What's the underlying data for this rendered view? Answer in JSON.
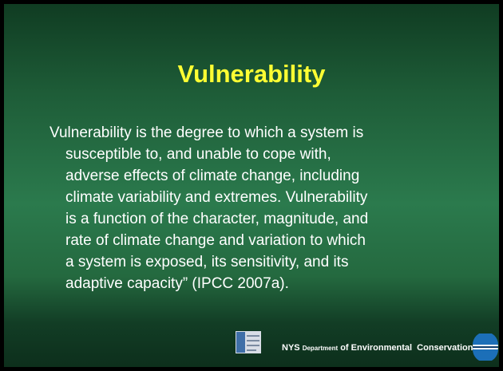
{
  "slide": {
    "title": "Vulnerability",
    "body_lines": [
      "Vulnerability is the degree to which a system is",
      "susceptible to, and unable to cope with,",
      "adverse effects of climate change, including",
      "climate variability and extremes. Vulnerability",
      "is a function of the character, magnitude, and",
      "rate of climate change and variation to which",
      "a system is exposed, its sensitivity, and its",
      "adaptive capacity” (IPCC 2007a)."
    ],
    "footer": {
      "org_prefix": "NYS",
      "org_middle": "Department",
      "org_suffix": "of Environmental  Conservation"
    }
  }
}
